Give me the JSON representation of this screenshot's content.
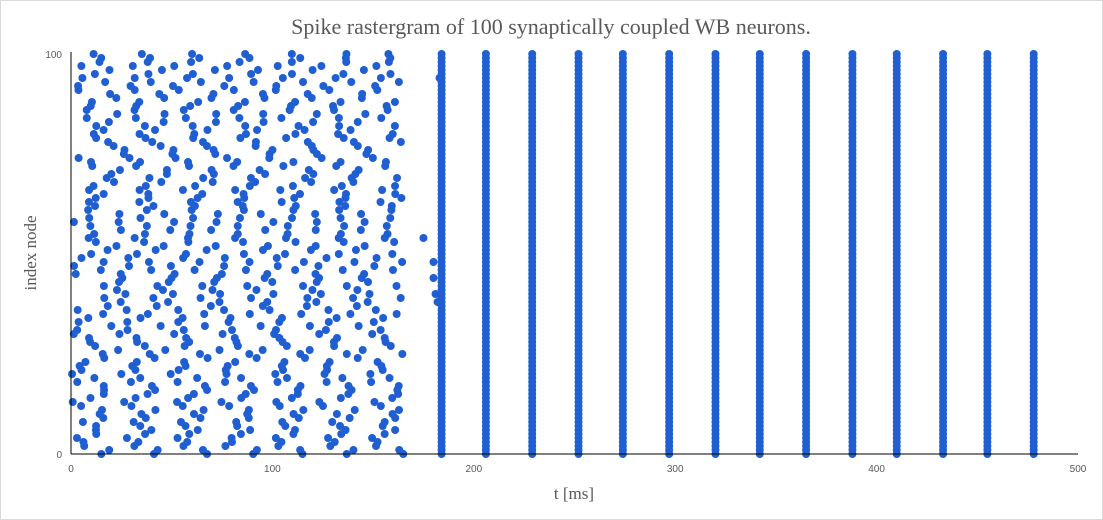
{
  "chart_data": {
    "type": "scatter",
    "title": "Spike rastergram of 100 synaptically coupled WB neurons.",
    "xlabel": "t [ms]",
    "ylabel": "index node",
    "xlim": [
      0,
      500
    ],
    "ylim": [
      0,
      100
    ],
    "x_ticks": [
      "0",
      "100",
      "200",
      "300",
      "400",
      "500"
    ],
    "y_ticks": [
      "0",
      "100"
    ],
    "grid": false,
    "legend": "none",
    "marker_color": "#1f5fd1",
    "series": [
      {
        "description_of_data": "spike times per neuron index",
        "async_phase": {
          "t_range": [
            0,
            165
          ],
          "neurons": 100,
          "approx_period_ms": 24.5,
          "drift_ms_per_index": 0.18,
          "jitter_ms": 2.5
        },
        "transition_spikes": [
          {
            "t": 175,
            "i": 54
          },
          {
            "t": 180,
            "i": 48
          },
          {
            "t": 180,
            "i": 44
          },
          {
            "t": 181,
            "i": 40
          },
          {
            "t": 182,
            "i": 38
          },
          {
            "t": 183,
            "i": 94
          }
        ],
        "sync_volleys_t": [
          184,
          206,
          229,
          252,
          274,
          297,
          320,
          342,
          365,
          388,
          410,
          433,
          455,
          478
        ],
        "sync_volley_indices": [
          0,
          100
        ]
      }
    ]
  }
}
